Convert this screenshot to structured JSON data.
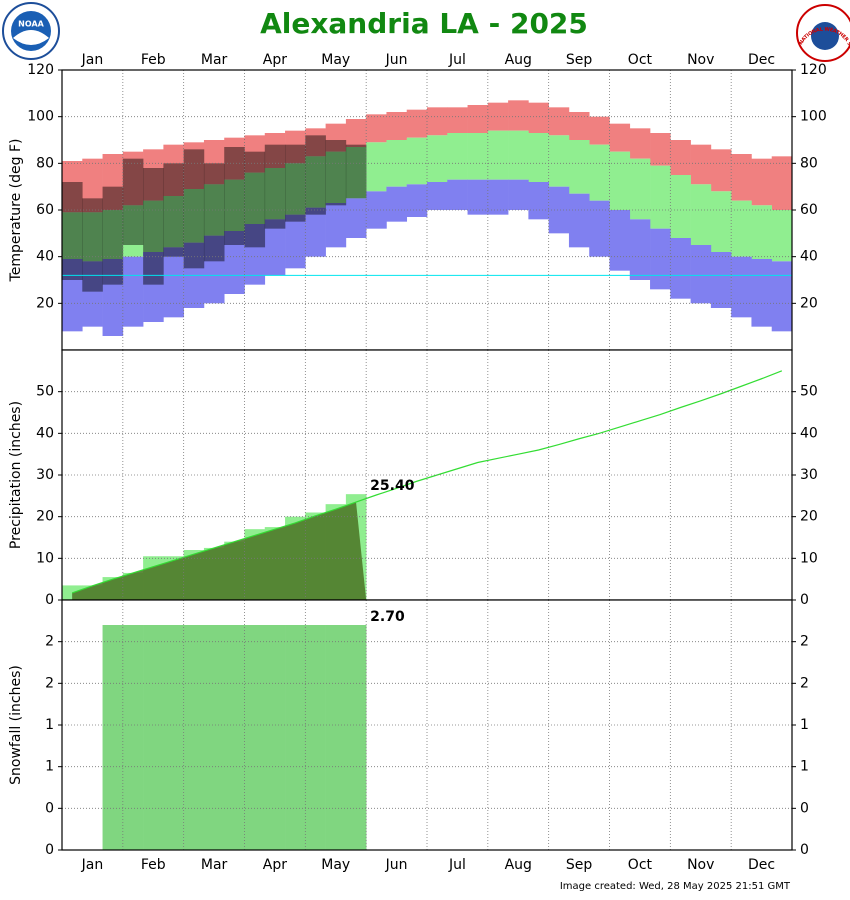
{
  "title": "Alexandria LA - 2025",
  "logos": {
    "left": "NOAA",
    "right": "NATIONAL WEATHER SERVICE"
  },
  "footer": "Image created: Wed, 28 May 2025 21:51 GMT",
  "chart_data": [
    {
      "type": "range_bar",
      "y_label": "Temperature (deg F)",
      "categories": [
        null,
        "Jan",
        null,
        null,
        "Feb",
        null,
        null,
        "Mar",
        null,
        null,
        "Apr",
        null,
        null,
        "May",
        null,
        null,
        "Jun",
        null,
        null,
        "Jul",
        null,
        null,
        "Aug",
        null,
        null,
        "Sep",
        null,
        null,
        "Oct",
        null,
        null,
        "Nov",
        null,
        null,
        "Dec",
        null
      ],
      "category_position": "top",
      "ylim": [
        0,
        120
      ],
      "yticks": [
        20,
        40,
        60,
        80,
        100,
        120
      ],
      "grid": true,
      "freezing_line": 32,
      "freezing_color": "#00e5ee",
      "series": [
        {
          "color": "#f08080",
          "opacity": 1,
          "high": [
            81,
            82,
            84,
            85,
            86,
            88,
            89,
            90,
            91,
            92,
            93,
            94,
            95,
            97,
            99,
            101,
            102,
            103,
            104,
            104,
            105,
            106,
            107,
            106,
            104,
            102,
            100,
            97,
            95,
            93,
            90,
            88,
            86,
            84,
            82,
            83
          ],
          "low": [
            59,
            59,
            60,
            62,
            64,
            66,
            69,
            71,
            73,
            76,
            78,
            80,
            83,
            85,
            87,
            89,
            90,
            91,
            92,
            93,
            93,
            94,
            94,
            93,
            92,
            90,
            88,
            85,
            82,
            79,
            75,
            71,
            68,
            64,
            62,
            60
          ]
        },
        {
          "color": "#90ee90",
          "opacity": 1,
          "high": [
            59,
            59,
            60,
            62,
            64,
            66,
            69,
            71,
            73,
            76,
            78,
            80,
            83,
            85,
            87,
            89,
            90,
            91,
            92,
            93,
            93,
            94,
            94,
            93,
            92,
            90,
            88,
            85,
            82,
            79,
            75,
            71,
            68,
            64,
            62,
            60
          ],
          "low": [
            39,
            38,
            39,
            40,
            42,
            44,
            46,
            49,
            51,
            54,
            56,
            58,
            61,
            63,
            65,
            68,
            70,
            71,
            72,
            73,
            73,
            73,
            73,
            72,
            70,
            67,
            64,
            60,
            56,
            52,
            48,
            45,
            42,
            40,
            39,
            38
          ]
        },
        {
          "color": "#8080f0",
          "opacity": 1,
          "high": [
            39,
            38,
            39,
            40,
            42,
            44,
            46,
            49,
            51,
            54,
            56,
            58,
            61,
            63,
            65,
            68,
            70,
            71,
            72,
            73,
            73,
            73,
            73,
            72,
            70,
            67,
            64,
            60,
            56,
            52,
            48,
            45,
            42,
            40,
            39,
            38
          ],
          "low": [
            8,
            10,
            6,
            10,
            12,
            14,
            18,
            20,
            24,
            28,
            32,
            35,
            40,
            44,
            48,
            52,
            55,
            57,
            60,
            60,
            58,
            58,
            60,
            56,
            50,
            44,
            40,
            34,
            30,
            26,
            22,
            20,
            18,
            14,
            10,
            8
          ]
        },
        {
          "color": "#000000",
          "opacity": 0.45,
          "high": [
            72,
            65,
            70,
            82,
            78,
            80,
            86,
            80,
            87,
            85,
            88,
            88,
            92,
            90,
            88,
            null,
            null,
            null,
            null,
            null,
            null,
            null,
            null,
            null,
            null,
            null,
            null,
            null,
            null,
            null,
            null,
            null,
            null,
            null,
            null,
            null
          ],
          "low": [
            30,
            25,
            28,
            45,
            28,
            40,
            35,
            38,
            45,
            44,
            52,
            55,
            58,
            62,
            65,
            null,
            null,
            null,
            null,
            null,
            null,
            null,
            null,
            null,
            null,
            null,
            null,
            null,
            null,
            null,
            null,
            null,
            null,
            null,
            null,
            null
          ]
        }
      ]
    },
    {
      "type": "precip",
      "y_label": "Precipitation (inches)",
      "ylim": [
        0,
        60
      ],
      "yticks": [
        0,
        10,
        20,
        30,
        40,
        50
      ],
      "grid": true,
      "overlap_color": "#4f7a2a",
      "series": [
        {
          "style": "bar",
          "color": "#90ee90",
          "values": [
            3.5,
            3.5,
            5.5,
            6.5,
            10.5,
            10.5,
            12,
            12.5,
            14,
            17,
            17.5,
            20,
            21,
            23,
            25.4,
            null,
            null,
            null,
            null,
            null,
            null,
            null,
            null,
            null,
            null,
            null,
            null,
            null,
            null,
            null,
            null,
            null,
            null,
            null,
            null,
            null
          ],
          "value_labels": [
            null,
            null,
            null,
            null,
            null,
            null,
            null,
            null,
            null,
            null,
            null,
            null,
            null,
            null,
            "25.40",
            null,
            null,
            null,
            null,
            null,
            null,
            null,
            null,
            null,
            null,
            null,
            null,
            null,
            null,
            null,
            null,
            null,
            null,
            null,
            null,
            null
          ]
        },
        {
          "style": "line",
          "color": "#33dd33",
          "values": [
            1.7,
            3.4,
            5.0,
            6.5,
            8.0,
            9.5,
            11,
            12.5,
            14,
            15.5,
            17,
            18.5,
            20.2,
            21.8,
            23.5,
            25.2,
            26.8,
            28.5,
            30,
            31.5,
            33,
            34,
            35,
            36,
            37.3,
            38.7,
            40,
            41.5,
            43,
            44.5,
            46.2,
            47.8,
            49.5,
            51.3,
            53.1,
            55
          ]
        }
      ]
    },
    {
      "type": "bar",
      "y_label": "Snowfall (inches)",
      "categories": [
        null,
        "Jan",
        null,
        null,
        "Feb",
        null,
        null,
        "Mar",
        null,
        null,
        "Apr",
        null,
        null,
        "May",
        null,
        null,
        "Jun",
        null,
        null,
        "Jul",
        null,
        null,
        "Aug",
        null,
        null,
        "Sep",
        null,
        null,
        "Oct",
        null,
        null,
        "Nov",
        null,
        null,
        "Dec",
        null
      ],
      "category_position": "bottom",
      "ylim": [
        0,
        3
      ],
      "yticks": [
        0,
        {
          "value": 0.5,
          "label": "0"
        },
        1,
        {
          "value": 1.5,
          "label": "1"
        },
        2,
        {
          "value": 2.5,
          "label": "2"
        }
      ],
      "grid": true,
      "series": [
        {
          "style": "bar",
          "color": "#80d680",
          "values": [
            0,
            0,
            2.7,
            2.7,
            2.7,
            2.7,
            2.7,
            2.7,
            2.7,
            2.7,
            2.7,
            2.7,
            2.7,
            2.7,
            2.7,
            null,
            null,
            null,
            null,
            null,
            null,
            null,
            null,
            null,
            null,
            null,
            null,
            null,
            null,
            null,
            null,
            null,
            null,
            null,
            null,
            null
          ],
          "value_labels": [
            null,
            null,
            null,
            null,
            null,
            null,
            null,
            null,
            null,
            null,
            null,
            null,
            null,
            null,
            "2.70",
            null,
            null,
            null,
            null,
            null,
            null,
            null,
            null,
            null,
            null,
            null,
            null,
            null,
            null,
            null,
            null,
            null,
            null,
            null,
            null,
            null
          ]
        }
      ]
    }
  ]
}
